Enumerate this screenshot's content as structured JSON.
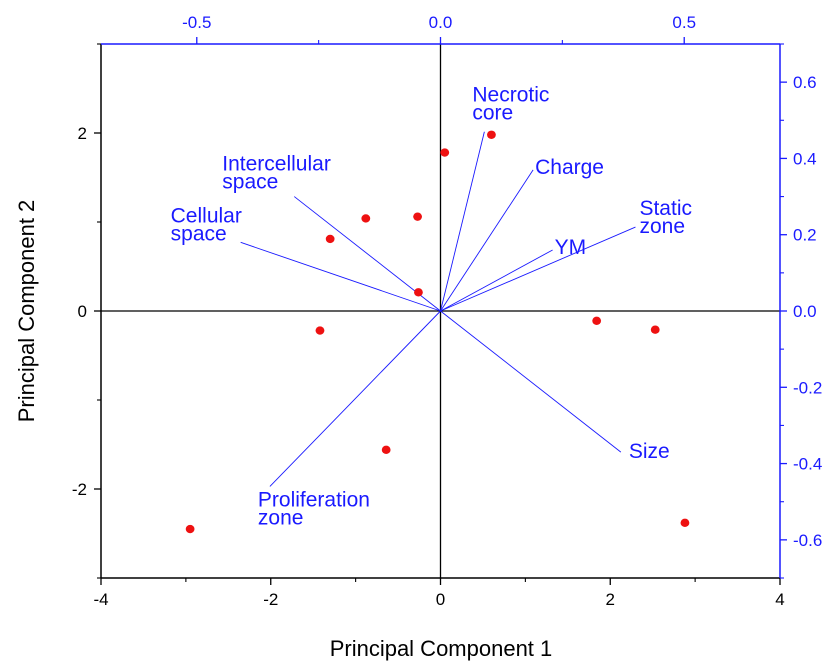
{
  "chart_data": {
    "type": "scatter",
    "title": "",
    "xlabel": "Principal Component 1",
    "ylabel": "Principal Component 2",
    "xlim": [
      -4,
      4
    ],
    "ylim": [
      -3,
      3
    ],
    "x_ticks": [
      "-4",
      "-2",
      "0",
      "2",
      "4"
    ],
    "y_ticks": [
      "-2",
      "0",
      "2"
    ],
    "top_axis": {
      "range": [
        -0.6965,
        0.6965
      ],
      "ticks": [
        "-0.5",
        "0.0",
        "0.5"
      ]
    },
    "right_axis": {
      "range": [
        -0.7,
        0.7
      ],
      "ticks": [
        "0.6",
        "0.4",
        "0.2",
        "0.0",
        "-0.2",
        "-0.4",
        "-0.6"
      ]
    },
    "scores": [
      {
        "x": 0.05,
        "y": 1.78
      },
      {
        "x": 0.6,
        "y": 1.98
      },
      {
        "x": -0.88,
        "y": 1.04
      },
      {
        "x": -0.27,
        "y": 1.06
      },
      {
        "x": -1.3,
        "y": 0.81
      },
      {
        "x": -0.26,
        "y": 0.21
      },
      {
        "x": -1.42,
        "y": -0.22
      },
      {
        "x": 1.84,
        "y": -0.11
      },
      {
        "x": 2.53,
        "y": -0.21
      },
      {
        "x": -0.64,
        "y": -1.56
      },
      {
        "x": -2.95,
        "y": -2.45
      },
      {
        "x": 2.88,
        "y": -2.38
      }
    ],
    "loadings": [
      {
        "label_lines": [
          "Intercellular",
          "space"
        ],
        "x": -0.3,
        "y": 0.3
      },
      {
        "label_lines": [
          "Cellular",
          "space"
        ],
        "x": -0.41,
        "y": 0.18
      },
      {
        "label_lines": [
          "Necrotic",
          "core"
        ],
        "x": 0.09,
        "y": 0.47
      },
      {
        "label_lines": [
          "Charge"
        ],
        "x": 0.19,
        "y": 0.37
      },
      {
        "label_lines": [
          "YM"
        ],
        "x": 0.23,
        "y": 0.16
      },
      {
        "label_lines": [
          "Static",
          "zone"
        ],
        "x": 0.4,
        "y": 0.22
      },
      {
        "label_lines": [
          "Size"
        ],
        "x": 0.37,
        "y": -0.37
      },
      {
        "label_lines": [
          "Proliferation",
          "zone"
        ],
        "x": -0.35,
        "y": -0.46
      }
    ],
    "grid": false,
    "legend": "none",
    "colors": {
      "scores": "#ee1111",
      "loadings": "#1a1aff",
      "axes": "#000000"
    }
  }
}
